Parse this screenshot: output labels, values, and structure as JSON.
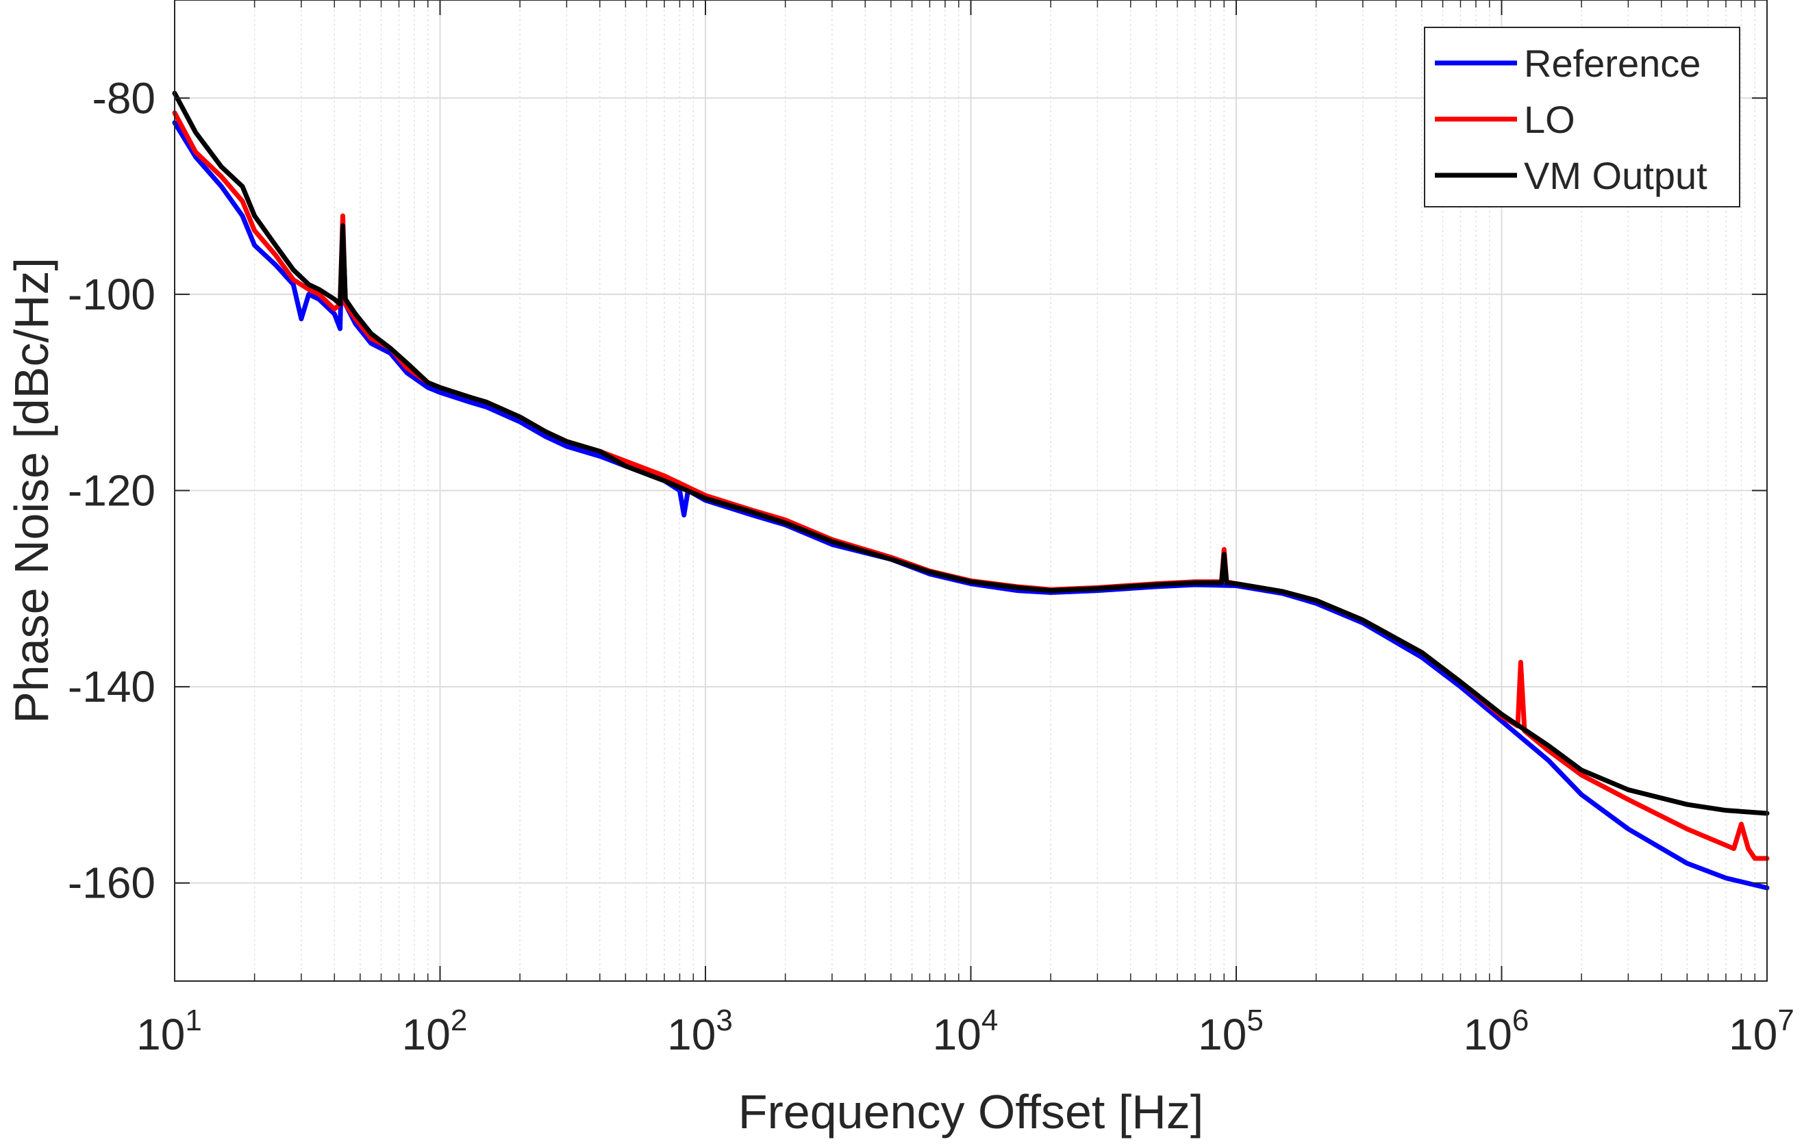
{
  "chart_data": {
    "type": "line",
    "title": "",
    "xlabel": "Frequency Offset [Hz]",
    "ylabel": "Phase Noise [dBc/Hz]",
    "xscale": "log",
    "xlim": [
      10,
      10000000
    ],
    "ylim": [
      -170,
      -70
    ],
    "x_ticks": [
      {
        "value": 10,
        "base": "10",
        "exp": "1"
      },
      {
        "value": 100,
        "base": "10",
        "exp": "2"
      },
      {
        "value": 1000,
        "base": "10",
        "exp": "3"
      },
      {
        "value": 10000,
        "base": "10",
        "exp": "4"
      },
      {
        "value": 100000,
        "base": "10",
        "exp": "5"
      },
      {
        "value": 1000000,
        "base": "10",
        "exp": "6"
      },
      {
        "value": 10000000,
        "base": "10",
        "exp": "7"
      }
    ],
    "y_ticks": [
      {
        "value": -80,
        "label": "-80"
      },
      {
        "value": -100,
        "label": "-100"
      },
      {
        "value": -120,
        "label": "-120"
      },
      {
        "value": -140,
        "label": "-140"
      },
      {
        "value": -160,
        "label": "-160"
      }
    ],
    "grid": true,
    "minor_grid": true,
    "legend_position": "top-right",
    "series": [
      {
        "name": "Reference",
        "color": "#0000ff",
        "points": [
          [
            10,
            -82.5
          ],
          [
            12,
            -86
          ],
          [
            15,
            -89
          ],
          [
            18,
            -92
          ],
          [
            20,
            -95
          ],
          [
            24,
            -97
          ],
          [
            28,
            -99
          ],
          [
            30,
            -102.5
          ],
          [
            32,
            -100
          ],
          [
            35,
            -100.5
          ],
          [
            40,
            -102
          ],
          [
            42,
            -103.5
          ],
          [
            43,
            -93
          ],
          [
            44,
            -101
          ],
          [
            48,
            -103
          ],
          [
            55,
            -105
          ],
          [
            65,
            -106
          ],
          [
            75,
            -108
          ],
          [
            90,
            -109.5
          ],
          [
            100,
            -110
          ],
          [
            130,
            -111
          ],
          [
            150,
            -111.5
          ],
          [
            200,
            -113
          ],
          [
            250,
            -114.5
          ],
          [
            300,
            -115.5
          ],
          [
            400,
            -116.5
          ],
          [
            500,
            -117.5
          ],
          [
            700,
            -119
          ],
          [
            800,
            -120
          ],
          [
            830,
            -122.5
          ],
          [
            860,
            -120
          ],
          [
            1000,
            -121
          ],
          [
            1500,
            -122.5
          ],
          [
            2000,
            -123.5
          ],
          [
            3000,
            -125.5
          ],
          [
            5000,
            -127
          ],
          [
            7000,
            -128.5
          ],
          [
            10000,
            -129.5
          ],
          [
            15000,
            -130.2
          ],
          [
            20000,
            -130.4
          ],
          [
            30000,
            -130.2
          ],
          [
            50000,
            -129.8
          ],
          [
            70000,
            -129.6
          ],
          [
            100000,
            -129.7
          ],
          [
            150000,
            -130.5
          ],
          [
            200000,
            -131.5
          ],
          [
            300000,
            -133.5
          ],
          [
            500000,
            -137
          ],
          [
            700000,
            -140
          ],
          [
            1000000,
            -143.5
          ],
          [
            1500000,
            -147.5
          ],
          [
            2000000,
            -151
          ],
          [
            3000000,
            -154.5
          ],
          [
            5000000,
            -158
          ],
          [
            7000000,
            -159.5
          ],
          [
            10000000,
            -160.5
          ]
        ]
      },
      {
        "name": "LO",
        "color": "#ff0000",
        "points": [
          [
            10,
            -81.5
          ],
          [
            12,
            -85.5
          ],
          [
            15,
            -88
          ],
          [
            18,
            -90.5
          ],
          [
            20,
            -93.5
          ],
          [
            24,
            -96
          ],
          [
            28,
            -98.5
          ],
          [
            32,
            -99.5
          ],
          [
            35,
            -100
          ],
          [
            40,
            -101.5
          ],
          [
            42,
            -101
          ],
          [
            43,
            -92
          ],
          [
            44,
            -101
          ],
          [
            48,
            -102.5
          ],
          [
            55,
            -104.5
          ],
          [
            65,
            -105.5
          ],
          [
            75,
            -107.5
          ],
          [
            90,
            -109
          ],
          [
            100,
            -109.5
          ],
          [
            130,
            -110.5
          ],
          [
            150,
            -111
          ],
          [
            200,
            -112.5
          ],
          [
            250,
            -114
          ],
          [
            300,
            -115
          ],
          [
            400,
            -116
          ],
          [
            500,
            -117
          ],
          [
            700,
            -118.5
          ],
          [
            1000,
            -120.5
          ],
          [
            1500,
            -122
          ],
          [
            2000,
            -123
          ],
          [
            3000,
            -125
          ],
          [
            5000,
            -126.8
          ],
          [
            7000,
            -128.2
          ],
          [
            10000,
            -129.2
          ],
          [
            15000,
            -129.8
          ],
          [
            20000,
            -130.1
          ],
          [
            30000,
            -129.9
          ],
          [
            50000,
            -129.5
          ],
          [
            70000,
            -129.3
          ],
          [
            88000,
            -129.3
          ],
          [
            90000,
            -126
          ],
          [
            92000,
            -129.3
          ],
          [
            100000,
            -129.5
          ],
          [
            150000,
            -130.3
          ],
          [
            200000,
            -131.2
          ],
          [
            300000,
            -133.2
          ],
          [
            500000,
            -136.5
          ],
          [
            700000,
            -139.5
          ],
          [
            1000000,
            -143
          ],
          [
            1150000,
            -144
          ],
          [
            1180000,
            -137.5
          ],
          [
            1220000,
            -144.5
          ],
          [
            1500000,
            -146.5
          ],
          [
            2000000,
            -149
          ],
          [
            3000000,
            -151.5
          ],
          [
            5000000,
            -154.5
          ],
          [
            7500000,
            -156.5
          ],
          [
            8000000,
            -154
          ],
          [
            8500000,
            -156.5
          ],
          [
            9000000,
            -157.5
          ],
          [
            10000000,
            -157.5
          ]
        ]
      },
      {
        "name": "VM Output",
        "color": "#000000",
        "points": [
          [
            10,
            -79.5
          ],
          [
            12,
            -83.5
          ],
          [
            15,
            -87
          ],
          [
            18,
            -89
          ],
          [
            20,
            -92
          ],
          [
            24,
            -95
          ],
          [
            28,
            -97.5
          ],
          [
            32,
            -99
          ],
          [
            35,
            -99.5
          ],
          [
            40,
            -100.5
          ],
          [
            42,
            -101
          ],
          [
            43,
            -93
          ],
          [
            44,
            -100.5
          ],
          [
            48,
            -102
          ],
          [
            55,
            -104
          ],
          [
            65,
            -105.5
          ],
          [
            75,
            -107
          ],
          [
            90,
            -109
          ],
          [
            100,
            -109.5
          ],
          [
            130,
            -110.5
          ],
          [
            150,
            -111
          ],
          [
            200,
            -112.5
          ],
          [
            250,
            -114
          ],
          [
            300,
            -115
          ],
          [
            400,
            -116
          ],
          [
            500,
            -117.5
          ],
          [
            700,
            -119
          ],
          [
            1000,
            -120.8
          ],
          [
            1500,
            -122.2
          ],
          [
            2000,
            -123.3
          ],
          [
            3000,
            -125.2
          ],
          [
            5000,
            -127
          ],
          [
            7000,
            -128.3
          ],
          [
            10000,
            -129.3
          ],
          [
            15000,
            -129.9
          ],
          [
            20000,
            -130.2
          ],
          [
            30000,
            -130
          ],
          [
            50000,
            -129.6
          ],
          [
            70000,
            -129.4
          ],
          [
            88000,
            -129.4
          ],
          [
            90000,
            -126.5
          ],
          [
            92000,
            -129.4
          ],
          [
            100000,
            -129.5
          ],
          [
            150000,
            -130.3
          ],
          [
            200000,
            -131.2
          ],
          [
            300000,
            -133.2
          ],
          [
            500000,
            -136.5
          ],
          [
            700000,
            -139.5
          ],
          [
            1000000,
            -142.8
          ],
          [
            1500000,
            -146
          ],
          [
            2000000,
            -148.5
          ],
          [
            3000000,
            -150.5
          ],
          [
            5000000,
            -152
          ],
          [
            7000000,
            -152.6
          ],
          [
            10000000,
            -152.9
          ]
        ]
      }
    ]
  }
}
